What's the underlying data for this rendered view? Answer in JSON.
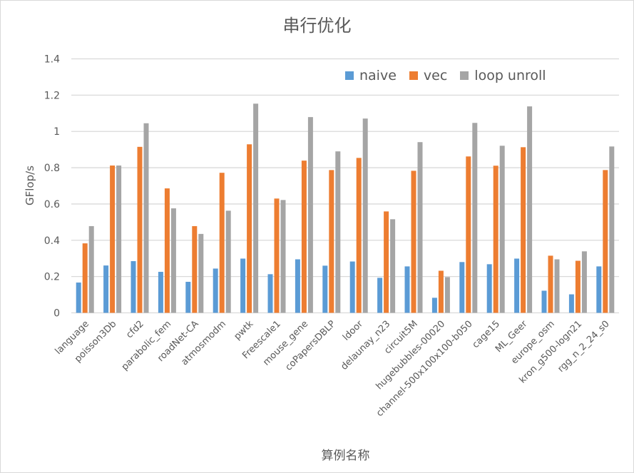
{
  "chart_data": {
    "type": "bar",
    "title": "串行优化",
    "xlabel": "算例名称",
    "ylabel": "GFlop/s",
    "ylim": [
      0,
      1.4
    ],
    "yticks": [
      "0",
      "0.2",
      "0.4",
      "0.6",
      "0.8",
      "1",
      "1.2",
      "1.4"
    ],
    "grid": true,
    "legend_position": "top-right",
    "categories": [
      "language",
      "poisson3Db",
      "cfd2",
      "parabolic_fem",
      "roadNet-CA",
      "atmosmodm",
      "pwtk",
      "Freescale1",
      "mouse_gene",
      "coPapersDBLP",
      "ldoor",
      "delaunay_n23",
      "circuit5M",
      "hugebubbles-00020",
      "channel-500x100x100-b050",
      "cage15",
      "ML_Geer",
      "europe_osm",
      "kron_g500-logn21",
      "rgg_n_2_24_s0"
    ],
    "series": [
      {
        "name": "naive",
        "color": "#5b9bd5",
        "values": [
          0.167,
          0.261,
          0.285,
          0.226,
          0.171,
          0.244,
          0.299,
          0.213,
          0.295,
          0.26,
          0.283,
          0.193,
          0.256,
          0.083,
          0.28,
          0.268,
          0.299,
          0.122,
          0.102,
          0.256
        ]
      },
      {
        "name": "vec",
        "color": "#ed7d31",
        "values": [
          0.383,
          0.812,
          0.915,
          0.686,
          0.478,
          0.772,
          0.929,
          0.63,
          0.839,
          0.787,
          0.854,
          0.559,
          0.783,
          0.232,
          0.862,
          0.811,
          0.913,
          0.315,
          0.287,
          0.787
        ]
      },
      {
        "name": "loop unroll",
        "color": "#a5a5a5",
        "values": [
          0.478,
          0.812,
          1.045,
          0.576,
          0.435,
          0.563,
          1.153,
          0.622,
          1.079,
          0.89,
          1.071,
          0.516,
          0.941,
          0.197,
          1.047,
          0.921,
          1.138,
          0.295,
          0.339,
          0.917
        ]
      }
    ]
  }
}
